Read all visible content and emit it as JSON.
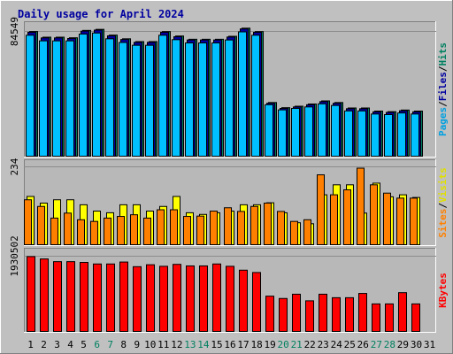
{
  "chart_data": {
    "type": "bar",
    "title": "Daily usage for April 2024",
    "categories": [
      "1",
      "2",
      "3",
      "4",
      "5",
      "6",
      "7",
      "8",
      "9",
      "10",
      "11",
      "12",
      "13",
      "14",
      "15",
      "16",
      "17",
      "18",
      "19",
      "20",
      "21",
      "22",
      "23",
      "24",
      "25",
      "26",
      "27",
      "28",
      "29",
      "30",
      "31"
    ],
    "weekend_days": [
      "6",
      "7",
      "13",
      "14",
      "20",
      "21",
      "27",
      "28"
    ],
    "panels": [
      {
        "name": "pages-files-hits",
        "tick_label": "84549",
        "ylim": [
          0,
          90000
        ],
        "y_labels": [
          {
            "text": "Pages",
            "color": "#00a0e0"
          },
          {
            "text": "/",
            "color": "#000000"
          },
          {
            "text": "Files",
            "color": "#0000a0"
          },
          {
            "text": "/",
            "color": "#000000"
          },
          {
            "text": "Hits",
            "color": "#008060"
          }
        ],
        "series": [
          {
            "name": "Hits",
            "color": "#008060",
            "values": [
              84549,
              80700,
              80700,
              80300,
              85300,
              86000,
              82100,
              79600,
              77700,
              77700,
              84500,
              81500,
              79300,
              79300,
              79300,
              81300,
              86800,
              84500,
              36400,
              32900,
              33900,
              35400,
              37500,
              36400,
              32700,
              32700,
              30600,
              30200,
              31300,
              30600,
              null
            ]
          },
          {
            "name": "Files",
            "color": "#0000a0",
            "values": [
              84000,
              80200,
              80200,
              79800,
              84800,
              85500,
              81600,
              79100,
              77200,
              77200,
              84000,
              81000,
              78800,
              78800,
              78800,
              80800,
              86300,
              84000,
              35900,
              32400,
              33400,
              34900,
              37000,
              35900,
              32200,
              32200,
              30100,
              29700,
              30800,
              30100,
              null
            ]
          },
          {
            "name": "Pages",
            "color": "#00c0ff",
            "values": [
              82000,
              78200,
              78200,
              78200,
              82800,
              83500,
              79600,
              77100,
              75200,
              75200,
              82000,
              79000,
              76800,
              76800,
              76800,
              78800,
              84300,
              82000,
              34900,
              31400,
              32400,
              33400,
              35500,
              34400,
              30700,
              30700,
              28600,
              28200,
              29300,
              28600,
              null
            ]
          }
        ]
      },
      {
        "name": "visits-sites",
        "tick_label": "234",
        "ylim": [
          0,
          250
        ],
        "y_labels": [
          {
            "text": "Sites",
            "color": "#ff8000"
          },
          {
            "text": "/",
            "color": "#000000"
          },
          {
            "text": "Visits",
            "color": "#e0e000"
          }
        ],
        "series": [
          {
            "name": "Visits",
            "color": "#ffff00",
            "values": [
              145,
              125,
              135,
              135,
              120,
              101,
              96,
              120,
              120,
              101,
              115,
              145,
              96,
              91,
              96,
              101,
              120,
              120,
              126,
              96,
              66,
              63,
              150,
              180,
              180,
              95,
              185,
              144,
              150,
              142,
              null
            ]
          },
          {
            "name": "Sites",
            "color": "#ff8000",
            "values": [
              135,
              115,
              80,
              95,
              75,
              70,
              80,
              85,
              90,
              80,
              105,
              105,
              85,
              86,
              101,
              111,
              100,
              115,
              125,
              100,
              70,
              75,
              210,
              150,
              165,
              230,
              180,
              155,
              140,
              140,
              null
            ]
          }
        ]
      },
      {
        "name": "kbytes",
        "tick_label": "1930502",
        "ylim": [
          0,
          2100000
        ],
        "y_labels": [
          {
            "text": "KBytes",
            "color": "#ff0000"
          }
        ],
        "series": [
          {
            "name": "KBytes",
            "color": "#ff0000",
            "values": [
              1930502,
              1870000,
              1800000,
              1800000,
              1780000,
              1740000,
              1740000,
              1790000,
              1670000,
              1720000,
              1680000,
              1730000,
              1690000,
              1690000,
              1740000,
              1680000,
              1580000,
              1520000,
              910000,
              850000,
              960000,
              790000,
              960000,
              870000,
              870000,
              980000,
              710000,
              710000,
              1000000,
              710000,
              null
            ]
          }
        ]
      }
    ]
  }
}
